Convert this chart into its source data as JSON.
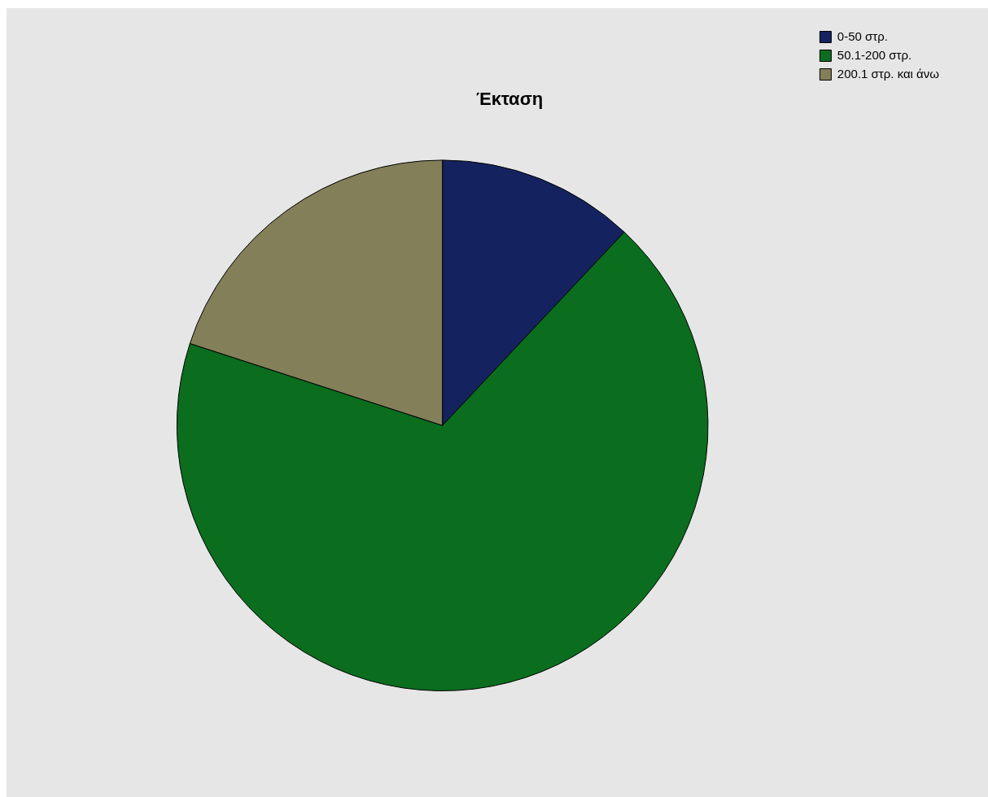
{
  "chart_data": {
    "type": "pie",
    "title": "Έκταση",
    "categories": [
      "0-50 στρ.",
      "50.1-200 στρ.",
      "200.1 στρ. και άνω"
    ],
    "values": [
      12,
      68,
      20
    ],
    "colors": [
      "#14235f",
      "#0a6e1e",
      "#837f59"
    ],
    "legend": "top right"
  }
}
